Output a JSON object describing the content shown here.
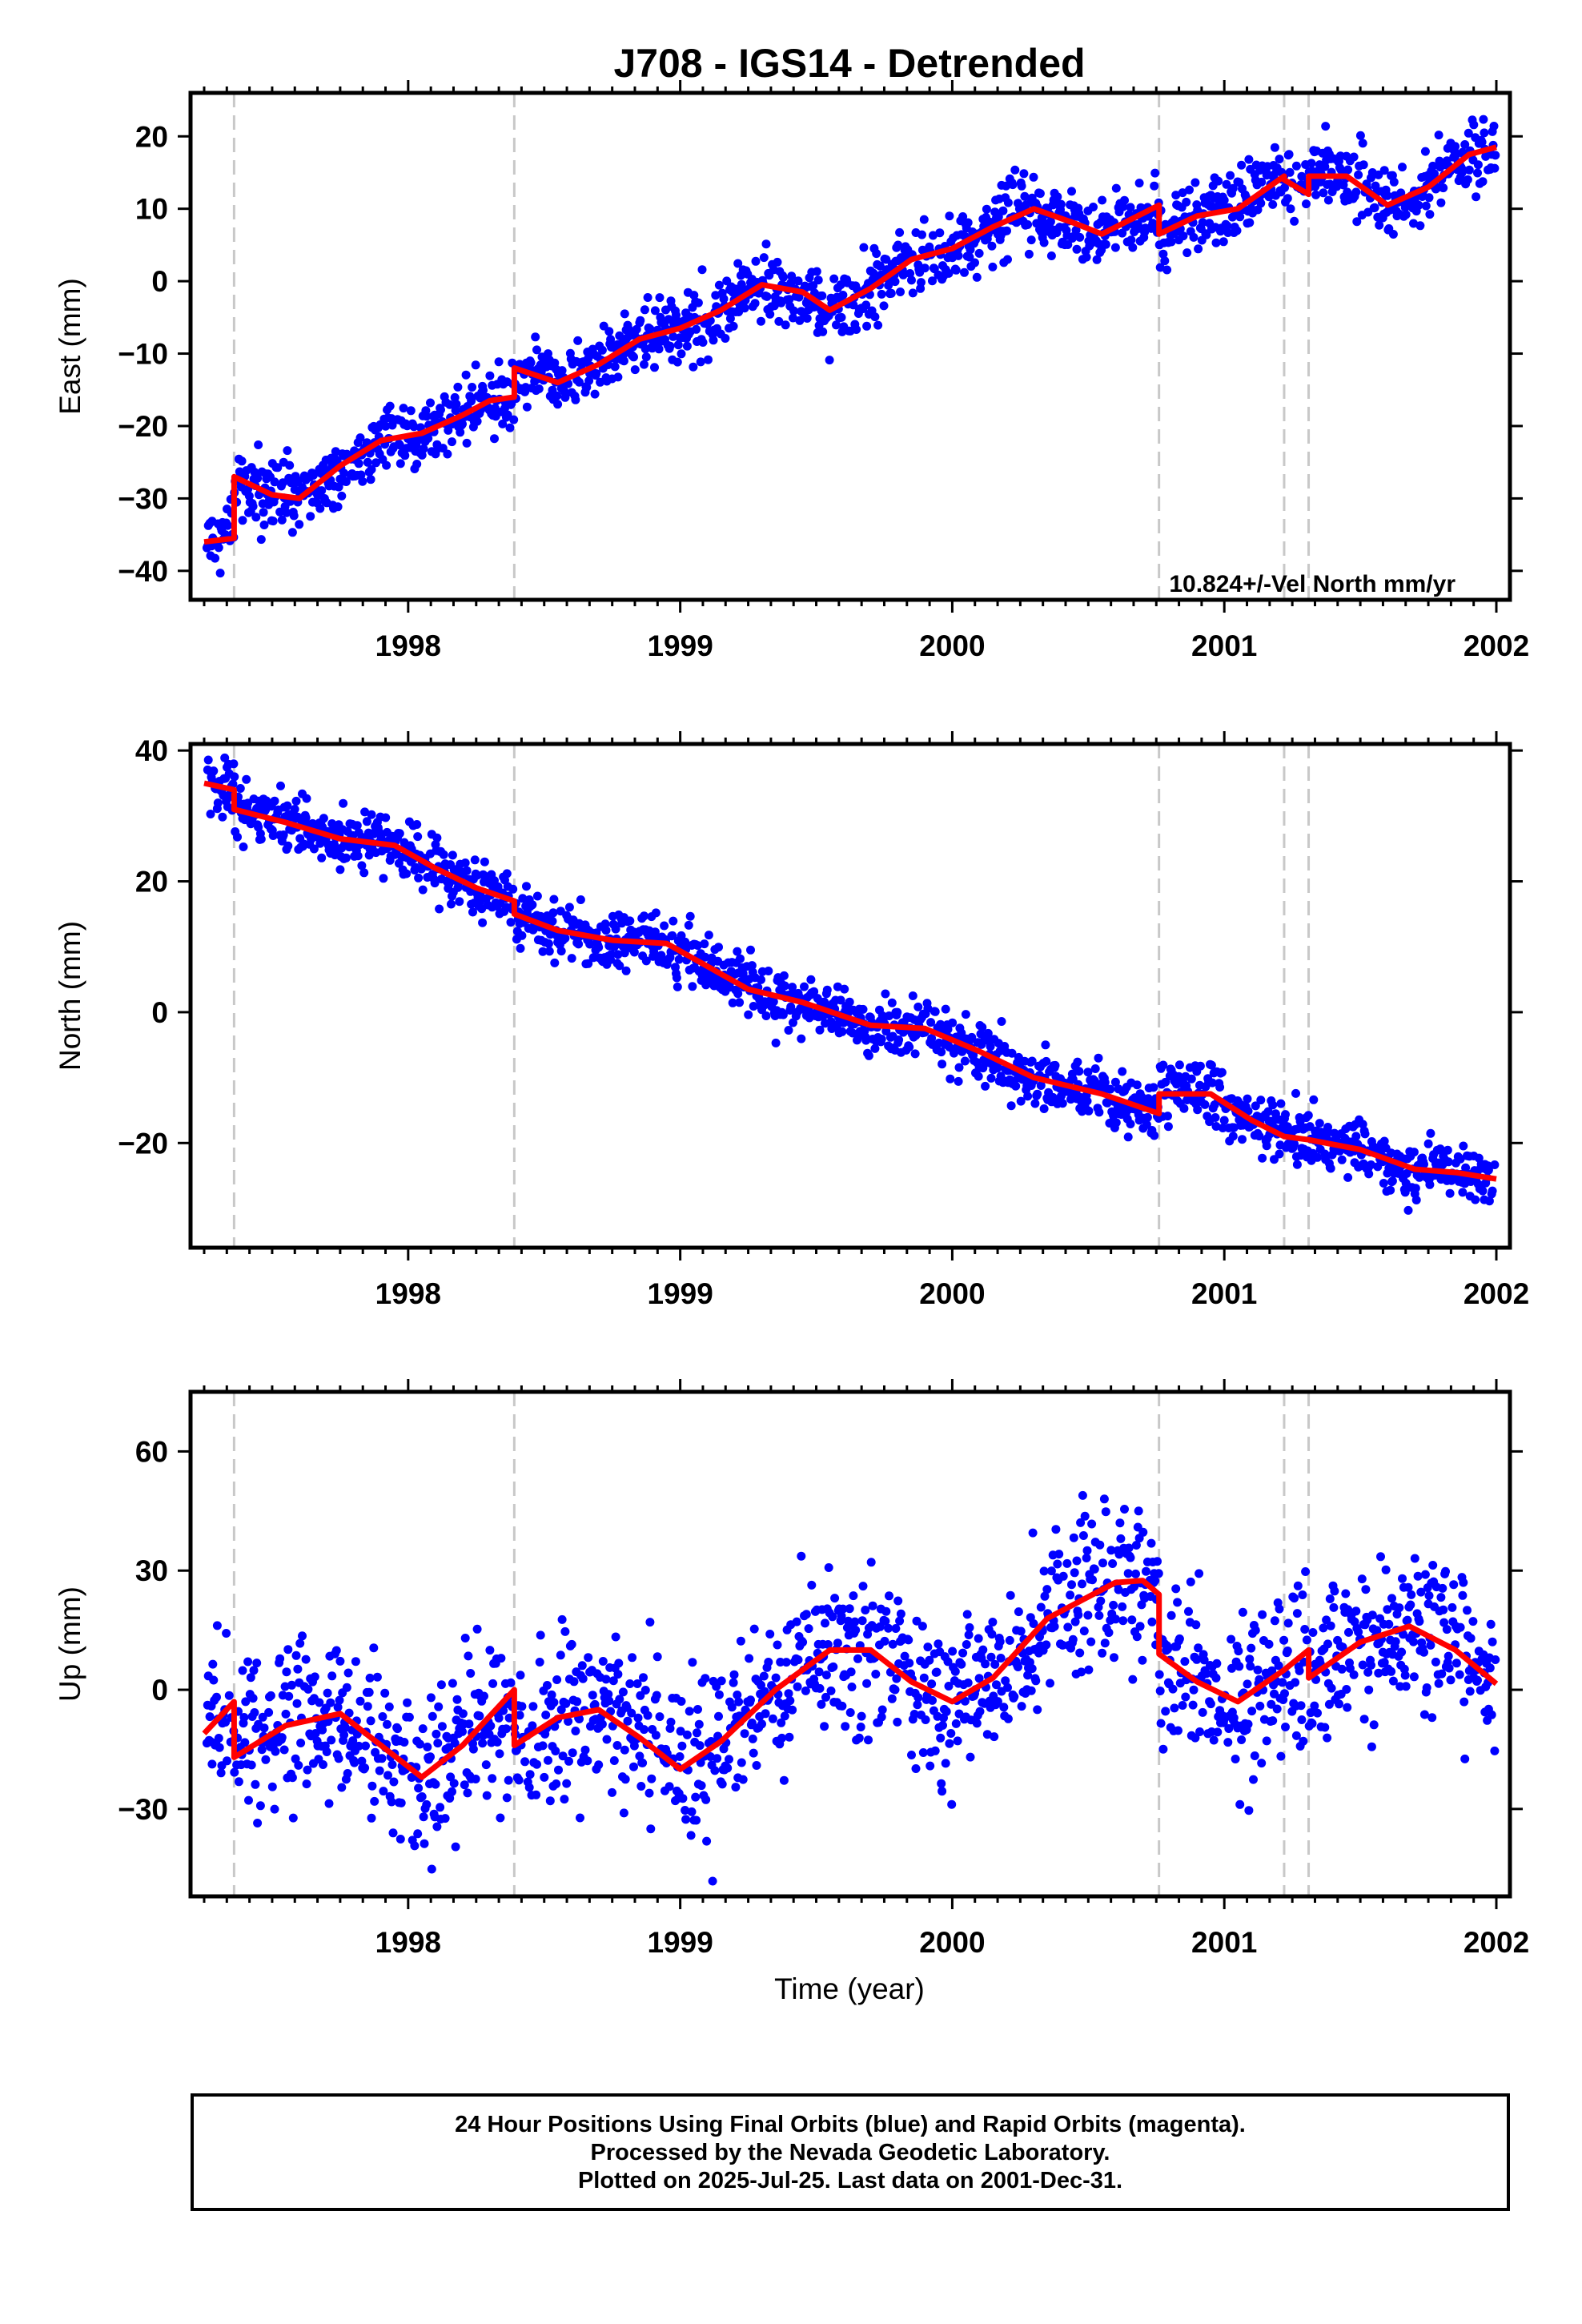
{
  "title": "J708 - IGS14 - Detrended",
  "xlabel": "Time (year)",
  "footer": {
    "line1": "24 Hour Positions Using Final Orbits (blue) and Rapid Orbits (magenta).",
    "line2": "Processed by the Nevada Geodetic Laboratory.",
    "line3": "Plotted on 2025-Jul-25. Last data on 2001-Dec-31."
  },
  "colors": {
    "points": "#0000ff",
    "model": "#ff0000",
    "steps": "#c8c8c8",
    "frame": "#000000"
  },
  "chart_data": [
    {
      "type": "scatter",
      "ylabel": "East (mm)",
      "annotation": "10.824+/-Vel North mm/yr",
      "xlim": [
        1997.2,
        2002.05
      ],
      "ylim": [
        -44,
        26
      ],
      "xticks": [
        1998,
        1999,
        2000,
        2001,
        2002
      ],
      "yticks": [
        -40,
        -30,
        -20,
        -10,
        0,
        10,
        20
      ],
      "step_epochs": [
        1997.36,
        1998.39,
        2000.76,
        2001.22,
        2001.31
      ],
      "scatter_sd": 2.4,
      "model": [
        [
          1997.25,
          -36.0
        ],
        [
          1997.36,
          -35.5
        ],
        [
          1997.36,
          -27.0
        ],
        [
          1997.5,
          -29.5
        ],
        [
          1997.6,
          -30.0
        ],
        [
          1997.75,
          -25.5
        ],
        [
          1997.9,
          -22.0
        ],
        [
          1998.05,
          -21.0
        ],
        [
          1998.2,
          -18.5
        ],
        [
          1998.3,
          -16.5
        ],
        [
          1998.39,
          -16.0
        ],
        [
          1998.39,
          -12.0
        ],
        [
          1998.55,
          -14.0
        ],
        [
          1998.7,
          -11.5
        ],
        [
          1998.85,
          -8.0
        ],
        [
          1999.0,
          -6.5
        ],
        [
          1999.15,
          -4.0
        ],
        [
          1999.3,
          -0.5
        ],
        [
          1999.45,
          -1.5
        ],
        [
          1999.55,
          -4.0
        ],
        [
          1999.7,
          -1.0
        ],
        [
          1999.85,
          3.0
        ],
        [
          2000.0,
          4.5
        ],
        [
          2000.15,
          7.5
        ],
        [
          2000.3,
          10.0
        ],
        [
          2000.45,
          8.0
        ],
        [
          2000.55,
          6.5
        ],
        [
          2000.76,
          10.5
        ],
        [
          2000.76,
          6.5
        ],
        [
          2000.9,
          9.0
        ],
        [
          2001.05,
          10.0
        ],
        [
          2001.22,
          14.5
        ],
        [
          2001.22,
          14.0
        ],
        [
          2001.31,
          12.0
        ],
        [
          2001.31,
          14.5
        ],
        [
          2001.45,
          14.5
        ],
        [
          2001.6,
          10.5
        ],
        [
          2001.75,
          13.0
        ],
        [
          2001.9,
          17.5
        ],
        [
          2002.0,
          18.5
        ]
      ]
    },
    {
      "type": "scatter",
      "ylabel": "North (mm)",
      "xlim": [
        1997.2,
        2002.05
      ],
      "ylim": [
        -36,
        41
      ],
      "xticks": [
        1998,
        1999,
        2000,
        2001,
        2002
      ],
      "yticks": [
        -20,
        0,
        20,
        40
      ],
      "step_epochs": [
        1997.36,
        1998.39,
        2000.76,
        2001.22,
        2001.31
      ],
      "scatter_sd": 2.2,
      "model": [
        [
          1997.25,
          35.0
        ],
        [
          1997.36,
          34.0
        ],
        [
          1997.36,
          31.0
        ],
        [
          1997.55,
          29.0
        ],
        [
          1997.75,
          26.5
        ],
        [
          1997.95,
          25.5
        ],
        [
          1998.1,
          22.0
        ],
        [
          1998.25,
          19.0
        ],
        [
          1998.39,
          17.0
        ],
        [
          1998.39,
          15.0
        ],
        [
          1998.55,
          12.5
        ],
        [
          1998.75,
          11.0
        ],
        [
          1998.95,
          10.5
        ],
        [
          1999.1,
          7.0
        ],
        [
          1999.25,
          3.5
        ],
        [
          1999.45,
          1.5
        ],
        [
          1999.7,
          -2.0
        ],
        [
          1999.9,
          -2.5
        ],
        [
          2000.1,
          -6.0
        ],
        [
          2000.3,
          -10.0
        ],
        [
          2000.55,
          -12.5
        ],
        [
          2000.76,
          -15.5
        ],
        [
          2000.76,
          -12.5
        ],
        [
          2000.95,
          -12.5
        ],
        [
          2001.1,
          -16.5
        ],
        [
          2001.22,
          -19.0
        ],
        [
          2001.31,
          -19.5
        ],
        [
          2001.5,
          -21.0
        ],
        [
          2001.7,
          -24.0
        ],
        [
          2001.85,
          -24.5
        ],
        [
          2002.0,
          -25.5
        ]
      ]
    },
    {
      "type": "scatter",
      "ylabel": "Up (mm)",
      "xlim": [
        1997.2,
        2002.05
      ],
      "ylim": [
        -52,
        75
      ],
      "xticks": [
        1998,
        1999,
        2000,
        2001,
        2002
      ],
      "yticks": [
        -30,
        0,
        30,
        60
      ],
      "step_epochs": [
        1997.36,
        1998.39,
        2000.76,
        2001.22,
        2001.31
      ],
      "scatter_sd": 10,
      "model": [
        [
          1997.25,
          -11.0
        ],
        [
          1997.36,
          -3.0
        ],
        [
          1997.36,
          -17.0
        ],
        [
          1997.55,
          -9.0
        ],
        [
          1997.75,
          -6.0
        ],
        [
          1997.9,
          -14.0
        ],
        [
          1998.05,
          -22.0
        ],
        [
          1998.2,
          -14.0
        ],
        [
          1998.39,
          0.0
        ],
        [
          1998.39,
          -14.0
        ],
        [
          1998.55,
          -7.0
        ],
        [
          1998.7,
          -5.0
        ],
        [
          1998.85,
          -12.0
        ],
        [
          1999.0,
          -20.0
        ],
        [
          1999.15,
          -13.0
        ],
        [
          1999.35,
          0.0
        ],
        [
          1999.55,
          10.0
        ],
        [
          1999.7,
          10.0
        ],
        [
          1999.85,
          2.0
        ],
        [
          2000.0,
          -3.0
        ],
        [
          2000.15,
          3.0
        ],
        [
          2000.35,
          18.0
        ],
        [
          2000.6,
          27.0
        ],
        [
          2000.7,
          27.5
        ],
        [
          2000.76,
          24.0
        ],
        [
          2000.76,
          9.0
        ],
        [
          2000.9,
          2.0
        ],
        [
          2001.05,
          -3.0
        ],
        [
          2001.22,
          5.0
        ],
        [
          2001.31,
          10.0
        ],
        [
          2001.31,
          3.0
        ],
        [
          2001.5,
          12.0
        ],
        [
          2001.68,
          16.0
        ],
        [
          2001.85,
          10.0
        ],
        [
          2002.0,
          1.5
        ]
      ]
    }
  ]
}
